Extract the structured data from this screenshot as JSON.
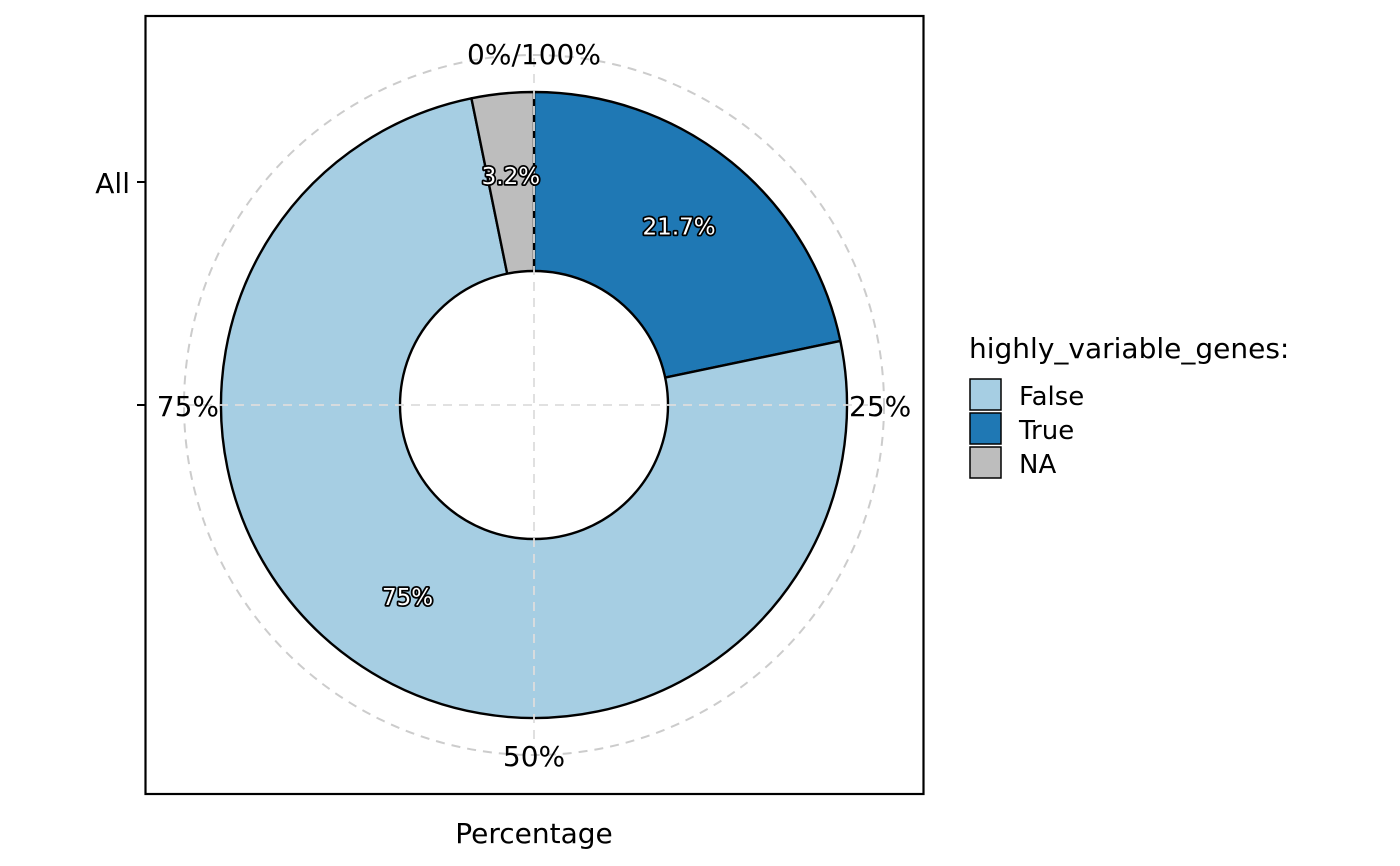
{
  "chart_data": {
    "type": "pie",
    "variant": "donut",
    "categories": [
      "All"
    ],
    "series": [
      {
        "name": "False",
        "value": 75.0,
        "label": "75%",
        "color": "#a6cee3"
      },
      {
        "name": "True",
        "value": 21.7,
        "label": "21.7%",
        "color": "#1f78b4"
      },
      {
        "name": "NA",
        "value": 3.2,
        "label": "3.2%",
        "color": "#bdbdbd"
      }
    ],
    "xlabel": "Percentage",
    "ylabel": "",
    "y_tick_labels": [
      "All"
    ],
    "angle_tick_labels": [
      "0%/100%",
      "25%",
      "50%",
      "75%"
    ],
    "legend": {
      "title": "highly_variable_genes:",
      "placement": "right",
      "entries": [
        "False",
        "True",
        "NA"
      ]
    },
    "grid": true,
    "grid_color": "#cccccc",
    "border_color": "#000000"
  }
}
